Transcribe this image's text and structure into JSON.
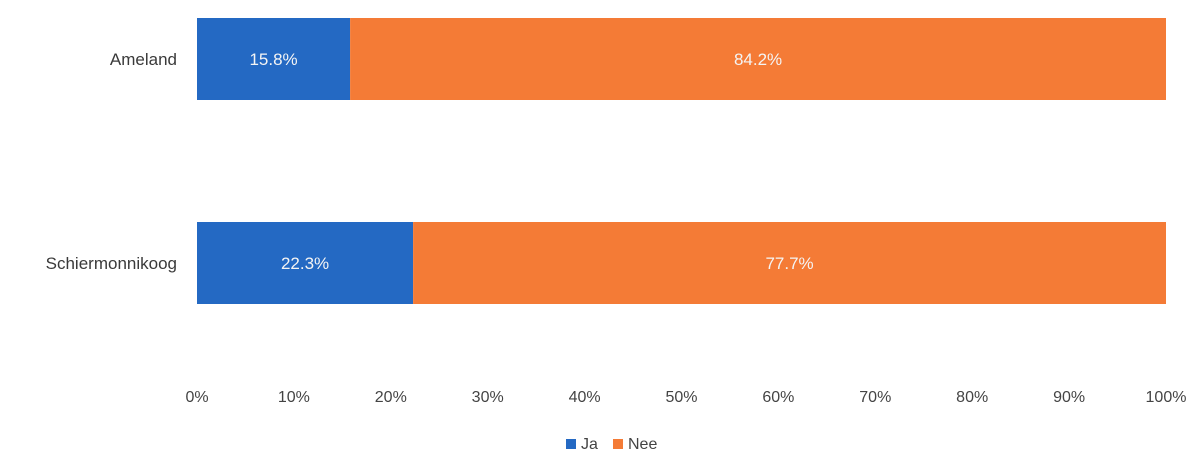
{
  "chart_data": {
    "type": "bar",
    "orientation": "horizontal",
    "stacked": true,
    "percent_stacked": true,
    "title": "",
    "xlabel": "",
    "ylabel": "",
    "categories": [
      "Ameland",
      "Schiermonnikoog"
    ],
    "series": [
      {
        "name": "Ja",
        "values": [
          15.8,
          22.3
        ],
        "labels": [
          "15.8%",
          "22.3%"
        ],
        "color": "#2469c3"
      },
      {
        "name": "Nee",
        "values": [
          84.2,
          77.7
        ],
        "labels": [
          "84.2%",
          "77.7%"
        ],
        "color": "#f47b36"
      }
    ],
    "xlim": [
      0,
      100
    ],
    "x_ticks": [
      "0%",
      "10%",
      "20%",
      "30%",
      "40%",
      "50%",
      "60%",
      "70%",
      "80%",
      "90%",
      "100%"
    ],
    "grid": false,
    "legend_position": "bottom"
  }
}
